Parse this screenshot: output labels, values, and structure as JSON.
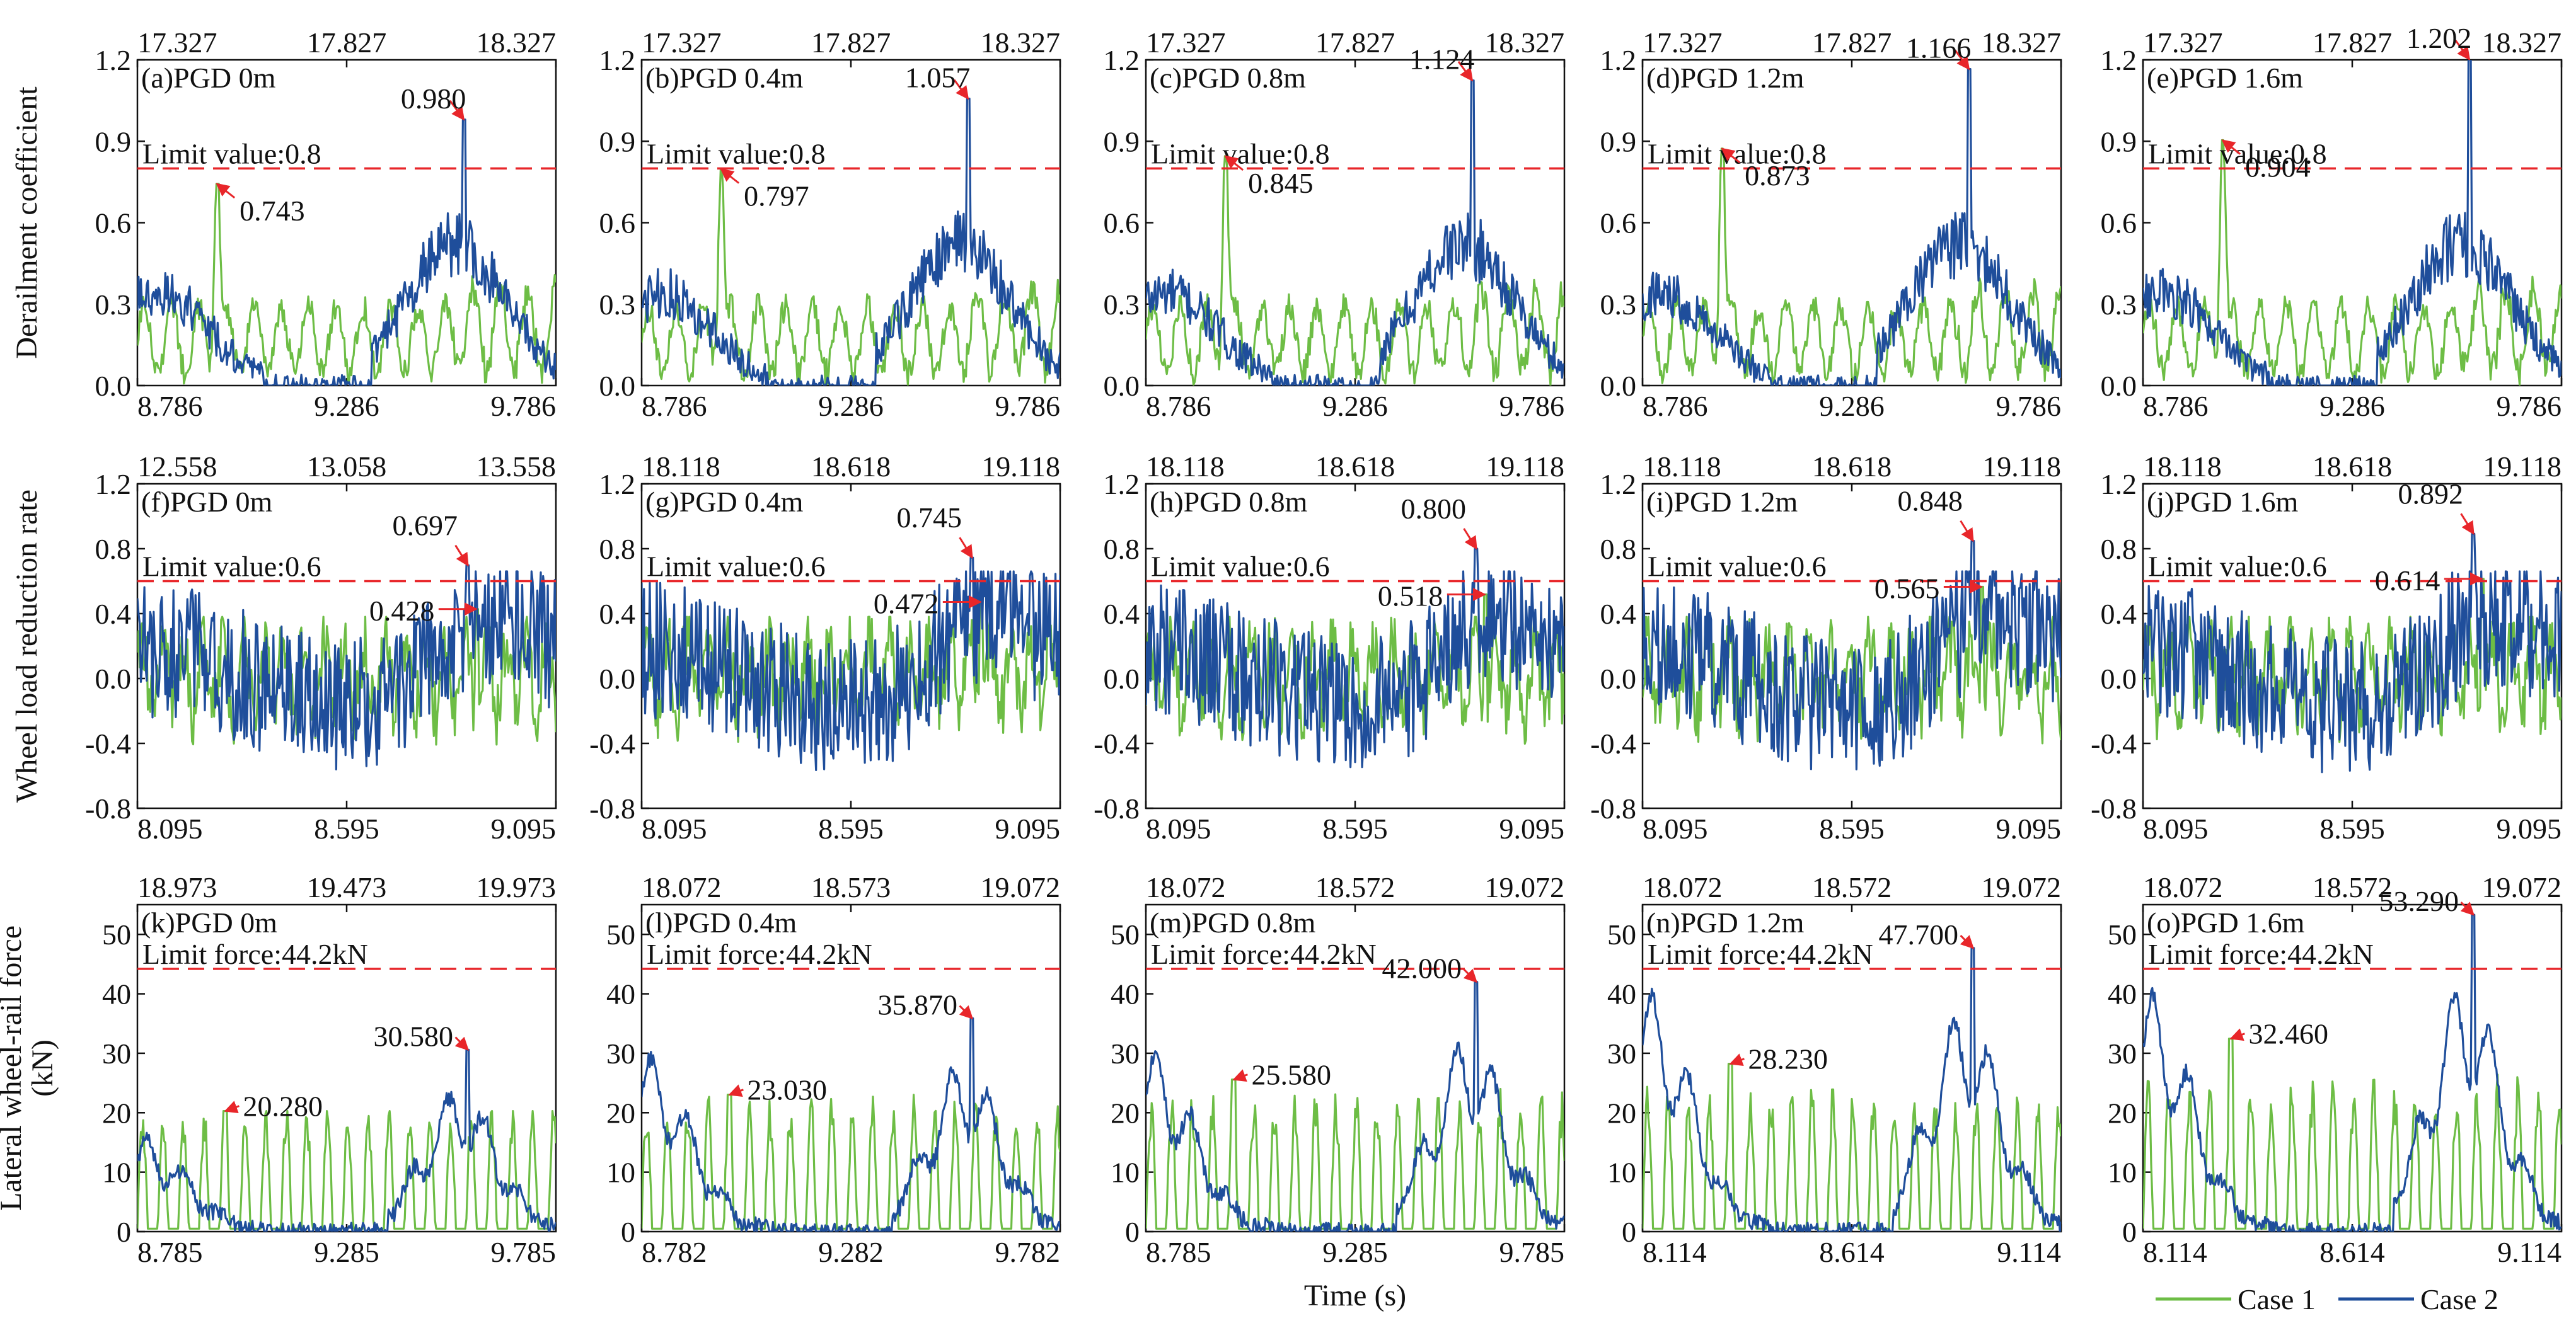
{
  "figure": {
    "xlabel": "Time (s)",
    "legend": [
      {
        "name": "Case 1",
        "color": "#6dbd45"
      },
      {
        "name": "Case 2",
        "color": "#1f4e9b"
      }
    ],
    "rows": [
      {
        "ylabel": "Derailment coefficient",
        "ylabel_lines": [
          "Derailment coefficient"
        ]
      },
      {
        "ylabel": "Wheel load reduction rate",
        "ylabel_lines": [
          "Wheel load reduction rate"
        ]
      },
      {
        "ylabel": "Lateral wheel-rail force (kN)",
        "ylabel_lines": [
          "Lateral wheel-rail force",
          "(kN)"
        ]
      }
    ],
    "limit_color": "#e8262a",
    "arrow_color": "#e8262a"
  },
  "chart_data": [
    {
      "id": "a",
      "type": "line",
      "title": "(a)PGD 0m",
      "ylim": [
        0,
        1.2
      ],
      "yticks": [
        "0.0",
        "0.3",
        "0.6",
        "0.9",
        "1.2"
      ],
      "ytick_values": [
        0,
        0.3,
        0.6,
        0.9,
        1.2
      ],
      "top_ticks": [
        "17.327",
        "17.827",
        "18.327"
      ],
      "bottom_ticks": [
        "8.786",
        "9.286",
        "9.786"
      ],
      "limit": {
        "value": 0.8,
        "label": "Limit value:0.8"
      },
      "case1_peak": {
        "x": 0.19,
        "value": 0.743,
        "label": "0.743"
      },
      "case2_peak": {
        "x": 0.78,
        "value": 0.98,
        "label": "0.980"
      },
      "series": [
        {
          "name": "Case 1",
          "profile": "derail1"
        },
        {
          "name": "Case 2",
          "profile": "derail2"
        }
      ]
    },
    {
      "id": "b",
      "type": "line",
      "title": "(b)PGD 0.4m",
      "ylim": [
        0,
        1.2
      ],
      "yticks": [
        "0.0",
        "0.3",
        "0.6",
        "0.9",
        "1.2"
      ],
      "ytick_values": [
        0,
        0.3,
        0.6,
        0.9,
        1.2
      ],
      "top_ticks": [
        "17.327",
        "17.827",
        "18.327"
      ],
      "bottom_ticks": [
        "8.786",
        "9.286",
        "9.786"
      ],
      "limit": {
        "value": 0.8,
        "label": "Limit value:0.8"
      },
      "case1_peak": {
        "x": 0.19,
        "value": 0.797,
        "label": "0.797"
      },
      "case2_peak": {
        "x": 0.78,
        "value": 1.057,
        "label": "1.057"
      },
      "series": [
        {
          "name": "Case 1",
          "profile": "derail1"
        },
        {
          "name": "Case 2",
          "profile": "derail2"
        }
      ]
    },
    {
      "id": "c",
      "type": "line",
      "title": "(c)PGD 0.8m",
      "ylim": [
        0,
        1.2
      ],
      "yticks": [
        "0.0",
        "0.3",
        "0.6",
        "0.9",
        "1.2"
      ],
      "ytick_values": [
        0,
        0.3,
        0.6,
        0.9,
        1.2
      ],
      "top_ticks": [
        "17.327",
        "17.827",
        "18.327"
      ],
      "bottom_ticks": [
        "8.786",
        "9.286",
        "9.786"
      ],
      "limit": {
        "value": 0.8,
        "label": "Limit value:0.8"
      },
      "case1_peak": {
        "x": 0.19,
        "value": 0.845,
        "label": "0.845"
      },
      "case2_peak": {
        "x": 0.78,
        "value": 1.124,
        "label": "1.124"
      },
      "series": [
        {
          "name": "Case 1",
          "profile": "derail1"
        },
        {
          "name": "Case 2",
          "profile": "derail2"
        }
      ]
    },
    {
      "id": "d",
      "type": "line",
      "title": "(d)PGD 1.2m",
      "ylim": [
        0,
        1.2
      ],
      "yticks": [
        "0.0",
        "0.3",
        "0.6",
        "0.9",
        "1.2"
      ],
      "ytick_values": [
        0,
        0.3,
        0.6,
        0.9,
        1.2
      ],
      "top_ticks": [
        "17.327",
        "17.827",
        "18.327"
      ],
      "bottom_ticks": [
        "8.786",
        "9.286",
        "9.786"
      ],
      "limit": {
        "value": 0.8,
        "label": "Limit value:0.8"
      },
      "case1_peak": {
        "x": 0.19,
        "value": 0.873,
        "label": "0.873"
      },
      "case2_peak": {
        "x": 0.78,
        "value": 1.166,
        "label": "1.166"
      },
      "series": [
        {
          "name": "Case 1",
          "profile": "derail1"
        },
        {
          "name": "Case 2",
          "profile": "derail2"
        }
      ]
    },
    {
      "id": "e",
      "type": "line",
      "title": "(e)PGD 1.6m",
      "ylim": [
        0,
        1.2
      ],
      "yticks": [
        "0.0",
        "0.3",
        "0.6",
        "0.9",
        "1.2"
      ],
      "ytick_values": [
        0,
        0.3,
        0.6,
        0.9,
        1.2
      ],
      "top_ticks": [
        "17.327",
        "17.827",
        "18.327"
      ],
      "bottom_ticks": [
        "8.786",
        "9.286",
        "9.786"
      ],
      "limit": {
        "value": 0.8,
        "label": "Limit value:0.8"
      },
      "case1_peak": {
        "x": 0.19,
        "value": 0.904,
        "label": "0.904"
      },
      "case2_peak": {
        "x": 0.78,
        "value": 1.202,
        "label": "1.202"
      },
      "series": [
        {
          "name": "Case 1",
          "profile": "derail1"
        },
        {
          "name": "Case 2",
          "profile": "derail2"
        }
      ]
    },
    {
      "id": "f",
      "type": "line",
      "title": "(f)PGD 0m",
      "ylim": [
        -0.8,
        1.2
      ],
      "yticks": [
        "-0.8",
        "-0.4",
        "0.0",
        "0.4",
        "0.8",
        "1.2"
      ],
      "ytick_values": [
        -0.8,
        -0.4,
        0,
        0.4,
        0.8,
        1.2
      ],
      "top_ticks": [
        "12.558",
        "13.058",
        "13.558"
      ],
      "bottom_ticks": [
        "8.095",
        "8.595",
        "9.095"
      ],
      "limit": {
        "value": 0.6,
        "label": "Limit value:0.6"
      },
      "case1_peak": {
        "x": 0.81,
        "value": 0.428,
        "label": "0.428"
      },
      "case2_peak": {
        "x": 0.79,
        "value": 0.697,
        "label": "0.697"
      },
      "series": [
        {
          "name": "Case 1",
          "profile": "wheel1"
        },
        {
          "name": "Case 2",
          "profile": "wheel2"
        }
      ]
    },
    {
      "id": "g",
      "type": "line",
      "title": "(g)PGD 0.4m",
      "ylim": [
        -0.8,
        1.2
      ],
      "yticks": [
        "-0.8",
        "-0.4",
        "0.0",
        "0.4",
        "0.8",
        "1.2"
      ],
      "ytick_values": [
        -0.8,
        -0.4,
        0,
        0.4,
        0.8,
        1.2
      ],
      "top_ticks": [
        "18.118",
        "18.618",
        "19.118"
      ],
      "bottom_ticks": [
        "8.095",
        "8.595",
        "9.095"
      ],
      "limit": {
        "value": 0.6,
        "label": "Limit value:0.6"
      },
      "case1_peak": {
        "x": 0.81,
        "value": 0.472,
        "label": "0.472"
      },
      "case2_peak": {
        "x": 0.79,
        "value": 0.745,
        "label": "0.745"
      },
      "series": [
        {
          "name": "Case 1",
          "profile": "wheel1"
        },
        {
          "name": "Case 2",
          "profile": "wheel2"
        }
      ]
    },
    {
      "id": "h",
      "type": "line",
      "title": "(h)PGD 0.8m",
      "ylim": [
        -0.8,
        1.2
      ],
      "yticks": [
        "-0.8",
        "-0.4",
        "0.0",
        "0.4",
        "0.8",
        "1.2"
      ],
      "ytick_values": [
        -0.8,
        -0.4,
        0,
        0.4,
        0.8,
        1.2
      ],
      "top_ticks": [
        "18.118",
        "18.618",
        "19.118"
      ],
      "bottom_ticks": [
        "8.095",
        "8.595",
        "9.095"
      ],
      "limit": {
        "value": 0.6,
        "label": "Limit value:0.6"
      },
      "case1_peak": {
        "x": 0.81,
        "value": 0.518,
        "label": "0.518"
      },
      "case2_peak": {
        "x": 0.79,
        "value": 0.8,
        "label": "0.800"
      },
      "series": [
        {
          "name": "Case 1",
          "profile": "wheel1"
        },
        {
          "name": "Case 2",
          "profile": "wheel2"
        }
      ]
    },
    {
      "id": "i",
      "type": "line",
      "title": "(i)PGD 1.2m",
      "ylim": [
        -0.8,
        1.2
      ],
      "yticks": [
        "-0.8",
        "-0.4",
        "0.0",
        "0.4",
        "0.8",
        "1.2"
      ],
      "ytick_values": [
        -0.8,
        -0.4,
        0,
        0.4,
        0.8,
        1.2
      ],
      "top_ticks": [
        "18.118",
        "18.618",
        "19.118"
      ],
      "bottom_ticks": [
        "8.095",
        "8.595",
        "9.095"
      ],
      "limit": {
        "value": 0.6,
        "label": "Limit value:0.6"
      },
      "case1_peak": {
        "x": 0.81,
        "value": 0.565,
        "label": "0.565"
      },
      "case2_peak": {
        "x": 0.79,
        "value": 0.848,
        "label": "0.848"
      },
      "series": [
        {
          "name": "Case 1",
          "profile": "wheel1"
        },
        {
          "name": "Case 2",
          "profile": "wheel2"
        }
      ]
    },
    {
      "id": "j",
      "type": "line",
      "title": "(j)PGD 1.6m",
      "ylim": [
        -0.8,
        1.2
      ],
      "yticks": [
        "-0.8",
        "-0.4",
        "0.0",
        "0.4",
        "0.8",
        "1.2"
      ],
      "ytick_values": [
        -0.8,
        -0.4,
        0,
        0.4,
        0.8,
        1.2
      ],
      "top_ticks": [
        "18.118",
        "18.618",
        "19.118"
      ],
      "bottom_ticks": [
        "8.095",
        "8.595",
        "9.095"
      ],
      "limit": {
        "value": 0.6,
        "label": "Limit value:0.6"
      },
      "case1_peak": {
        "x": 0.81,
        "value": 0.614,
        "label": "0.614"
      },
      "case2_peak": {
        "x": 0.79,
        "value": 0.892,
        "label": "0.892"
      },
      "series": [
        {
          "name": "Case 1",
          "profile": "wheel1"
        },
        {
          "name": "Case 2",
          "profile": "wheel2"
        }
      ]
    },
    {
      "id": "k",
      "type": "line",
      "title": "(k)PGD 0m",
      "ylim": [
        0,
        55
      ],
      "yticks": [
        "0",
        "10",
        "20",
        "30",
        "40",
        "50"
      ],
      "ytick_values": [
        0,
        10,
        20,
        30,
        40,
        50
      ],
      "top_ticks": [
        "18.973",
        "19.473",
        "19.973"
      ],
      "bottom_ticks": [
        "8.785",
        "9.285",
        "9.785"
      ],
      "limit": {
        "value": 44.2,
        "label": "Limit force:44.2kN"
      },
      "case1_peak": {
        "x": 0.21,
        "value": 20.28,
        "label": "20.280"
      },
      "case2_peak": {
        "x": 0.79,
        "value": 30.58,
        "label": "30.580"
      },
      "series": [
        {
          "name": "Case 1",
          "profile": "lat1"
        },
        {
          "name": "Case 2",
          "profile": "lat2a"
        }
      ]
    },
    {
      "id": "l",
      "type": "line",
      "title": "(l)PGD 0.4m",
      "ylim": [
        0,
        55
      ],
      "yticks": [
        "0",
        "10",
        "20",
        "30",
        "40",
        "50"
      ],
      "ytick_values": [
        0,
        10,
        20,
        30,
        40,
        50
      ],
      "top_ticks": [
        "18.072",
        "18.573",
        "19.072"
      ],
      "bottom_ticks": [
        "8.782",
        "9.282",
        "9.782"
      ],
      "limit": {
        "value": 44.2,
        "label": "Limit force:44.2kN"
      },
      "case1_peak": {
        "x": 0.21,
        "value": 23.03,
        "label": "23.030"
      },
      "case2_peak": {
        "x": 0.79,
        "value": 35.87,
        "label": "35.870"
      },
      "series": [
        {
          "name": "Case 1",
          "profile": "lat1"
        },
        {
          "name": "Case 2",
          "profile": "lat2b"
        }
      ]
    },
    {
      "id": "m",
      "type": "line",
      "title": "(m)PGD 0.8m",
      "ylim": [
        0,
        55
      ],
      "yticks": [
        "0",
        "10",
        "20",
        "30",
        "40",
        "50"
      ],
      "ytick_values": [
        0,
        10,
        20,
        30,
        40,
        50
      ],
      "top_ticks": [
        "18.072",
        "18.572",
        "19.072"
      ],
      "bottom_ticks": [
        "8.785",
        "9.285",
        "9.785"
      ],
      "limit": {
        "value": 44.2,
        "label": "Limit force:44.2kN"
      },
      "case1_peak": {
        "x": 0.21,
        "value": 25.58,
        "label": "25.580"
      },
      "case2_peak": {
        "x": 0.79,
        "value": 42.0,
        "label": "42.000"
      },
      "series": [
        {
          "name": "Case 1",
          "profile": "lat1"
        },
        {
          "name": "Case 2",
          "profile": "lat2b"
        }
      ]
    },
    {
      "id": "n",
      "type": "line",
      "title": "(n)PGD 1.2m",
      "ylim": [
        0,
        55
      ],
      "yticks": [
        "0",
        "10",
        "20",
        "30",
        "40",
        "50"
      ],
      "ytick_values": [
        0,
        10,
        20,
        30,
        40,
        50
      ],
      "top_ticks": [
        "18.072",
        "18.572",
        "19.072"
      ],
      "bottom_ticks": [
        "8.114",
        "8.614",
        "9.114"
      ],
      "limit": {
        "value": 44.2,
        "label": "Limit force:44.2kN"
      },
      "case1_peak": {
        "x": 0.21,
        "value": 28.23,
        "label": "28.230"
      },
      "case2_peak": {
        "x": 0.79,
        "value": 47.7,
        "label": "47.700"
      },
      "series": [
        {
          "name": "Case 1",
          "profile": "lat1"
        },
        {
          "name": "Case 2",
          "profile": "lat2c"
        }
      ]
    },
    {
      "id": "o",
      "type": "line",
      "title": "(o)PGD 1.6m",
      "ylim": [
        0,
        55
      ],
      "yticks": [
        "0",
        "10",
        "20",
        "30",
        "40",
        "50"
      ],
      "ytick_values": [
        0,
        10,
        20,
        30,
        40,
        50
      ],
      "top_ticks": [
        "18.072",
        "18.572",
        "19.072"
      ],
      "bottom_ticks": [
        "8.114",
        "8.614",
        "9.114"
      ],
      "limit": {
        "value": 44.2,
        "label": "Limit force:44.2kN"
      },
      "case1_peak": {
        "x": 0.21,
        "value": 32.46,
        "label": "32.460"
      },
      "case2_peak": {
        "x": 0.79,
        "value": 53.29,
        "label": "53.290"
      },
      "series": [
        {
          "name": "Case 1",
          "profile": "lat1"
        },
        {
          "name": "Case 2",
          "profile": "lat2c"
        }
      ]
    }
  ]
}
